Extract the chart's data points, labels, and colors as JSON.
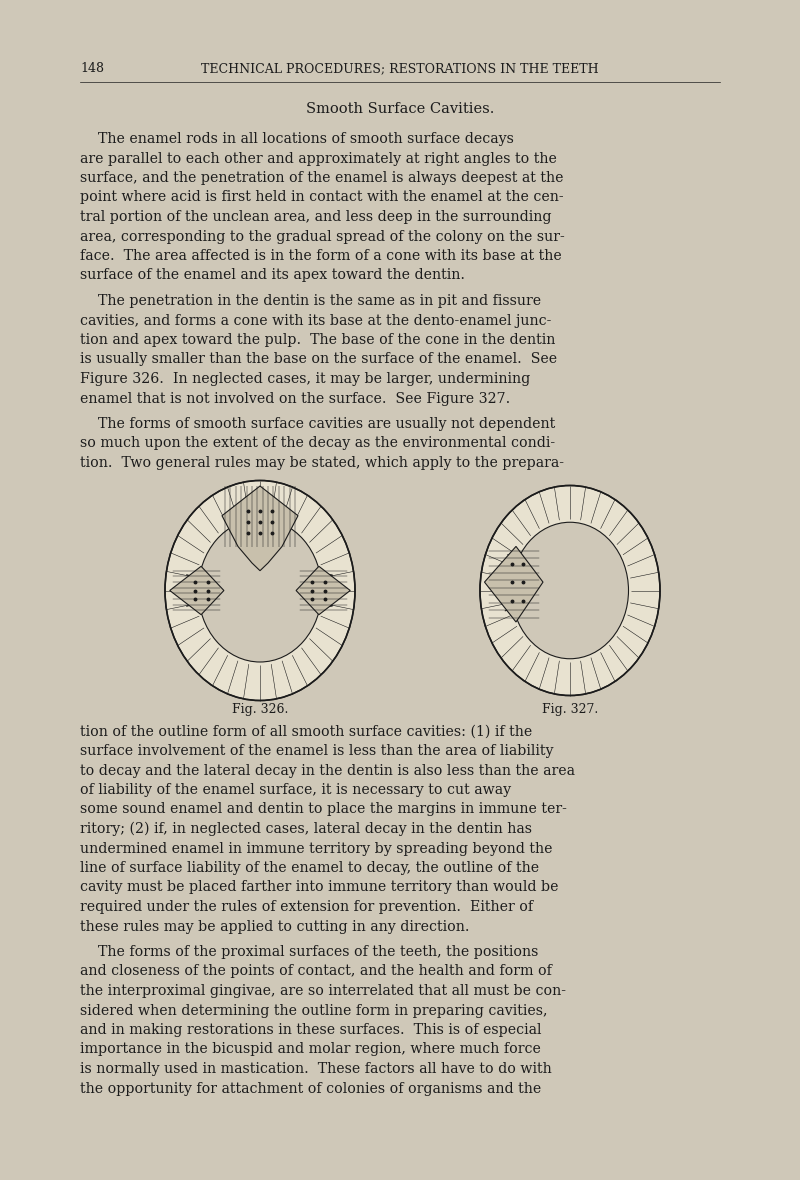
{
  "background_color": "#cfc8b8",
  "page_number": "148",
  "header": "TECHNICAL PROCEDURES; RESTORATIONS IN THE TEETH",
  "section_title": "Smooth Surface Cavities.",
  "fig326_label": "Fig. 326.",
  "fig327_label": "Fig. 327.",
  "text_color": "#1c1c1c",
  "lines_p1": [
    "    The enamel rods in all locations of smooth surface decays",
    "are parallel to each other and approximately at right angles to the",
    "surface, and the penetration of the enamel is always deepest at the",
    "point where acid is first held in contact with the enamel at the cen-",
    "tral portion of the unclean area, and less deep in the surrounding",
    "area, corresponding to the gradual spread of the colony on the sur-",
    "face.  The area affected is in the form of a cone with its base at the",
    "surface of the enamel and its apex toward the dentin."
  ],
  "lines_p2": [
    "    The penetration in the dentin is the same as in pit and fissure",
    "cavities, and forms a cone with its base at the dento-enamel junc-",
    "tion and apex toward the pulp.  The base of the cone in the dentin",
    "is usually smaller than the base on the surface of the enamel.  See",
    "Figure 326.  In neglected cases, it may be larger, undermining",
    "enamel that is not involved on the surface.  See Figure 327."
  ],
  "lines_p3a": [
    "    The forms of smooth surface cavities are usually not dependent",
    "so much upon the extent of the decay as the environmental condi-",
    "tion.  Two general rules may be stated, which apply to the prepara-"
  ],
  "lines_p3b": [
    "tion of the outline form of all smooth surface cavities: (1) if the",
    "surface involvement of the enamel is less than the area of liability",
    "to decay and the lateral decay in the dentin is also less than the area",
    "of liability of the enamel surface, it is necessary to cut away",
    "some sound enamel and dentin to place the margins in immune ter-",
    "ritory; (2) if, in neglected cases, lateral decay in the dentin has",
    "undermined enamel in immune territory by spreading beyond the",
    "line of surface liability of the enamel to decay, the outline of the",
    "cavity must be placed farther into immune territory than would be",
    "required under the rules of extension for prevention.  Either of",
    "these rules may be applied to cutting in any direction."
  ],
  "lines_p4": [
    "    The forms of the proximal surfaces of the teeth, the positions",
    "and closeness of the points of contact, and the health and form of",
    "the interproximal gingivae, are so interrelated that all must be con-",
    "sidered when determining the outline form in preparing cavities,",
    "and in making restorations in these surfaces.  This is of especial",
    "importance in the bicuspid and molar region, where much force",
    "is normally used in mastication.  These factors all have to do with",
    "the opportunity for attachment of colonies of organisms and the"
  ]
}
